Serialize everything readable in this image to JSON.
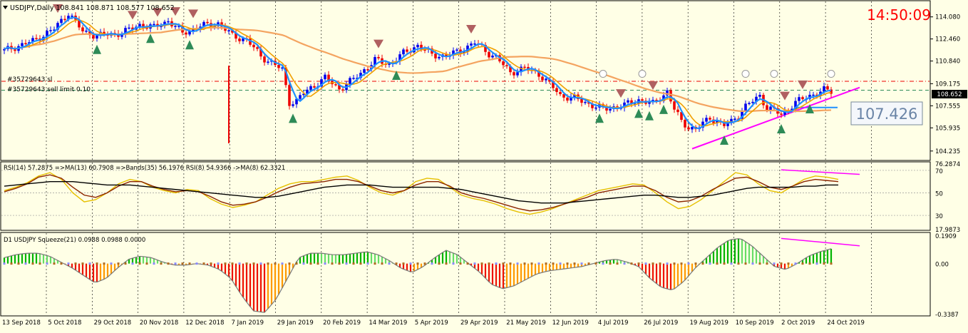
{
  "header": {
    "symbol_info": "USDJPY,Daily  108.841 108.871 108.577 108.652",
    "clock": "14:50:09",
    "clock_color": "#ff0000"
  },
  "price_panel": {
    "order_line_1": "#35729643 sl",
    "order_line_2": "#35729643 sell limit 0.10",
    "current_price_tag": "108.652",
    "level_label": "107.426"
  },
  "rsi_panel": {
    "legend": "RSI(14) 57.2875  =>MA(13) 60.7908  =>Bands(35) 56.1976  RSI(8) 54.9366  ->MA(8) 62.3321"
  },
  "squeeze_panel": {
    "legend": "D1 USDJPY Squeeze(21) 0.0988 0.0988 0.0000"
  },
  "colors": {
    "bull": "#0000ee",
    "bear": "#ee0000",
    "ema_fast": "#1e90ff",
    "ema_mid": "#f0a000",
    "sma_slow": "#f4a460",
    "trendline": "#ff00ff",
    "mom_up": "#00c800",
    "mom_down": "#ff2000"
  },
  "chart_data": [
    {
      "type": "candlestick",
      "symbol": "USDJPY",
      "timeframe": "Daily",
      "ohlc_last": {
        "open": 108.841,
        "high": 108.871,
        "low": 108.577,
        "close": 108.652
      },
      "ylim": [
        103.7,
        114.9
      ],
      "y_ticks": [
        104.235,
        105.935,
        107.555,
        109.175,
        110.84,
        112.46,
        114.08
      ],
      "y_tick_labels": [
        "104.235",
        "105.935",
        "107.555",
        "109.175",
        "110.840",
        "112.460",
        "114.080"
      ],
      "x_ticks": [
        "13 Sep 2018",
        "5 Oct 2018",
        "29 Oct 2018",
        "20 Nov 2018",
        "12 Dec 2018",
        "7 Jan 2019",
        "29 Jan 2019",
        "20 Feb 2019",
        "14 Mar 2019",
        "5 Apr 2019",
        "29 Apr 2019",
        "21 May 2019",
        "12 Jun 2019",
        "4 Jul 2019",
        "26 Jul 2019",
        "19 Aug 2019",
        "10 Sep 2019",
        "2 Oct 2019",
        "24 Oct 2019"
      ],
      "close_path": [
        [
          0,
          111.6
        ],
        [
          8,
          112.3
        ],
        [
          14,
          113.2
        ],
        [
          18,
          114.4
        ],
        [
          22,
          113.0
        ],
        [
          26,
          112.7
        ],
        [
          33,
          112.9
        ],
        [
          38,
          113.5
        ],
        [
          42,
          113.3
        ],
        [
          46,
          113.8
        ],
        [
          50,
          112.9
        ],
        [
          55,
          113.4
        ],
        [
          60,
          113.6
        ],
        [
          64,
          112.7
        ],
        [
          68,
          112.4
        ],
        [
          72,
          111.2
        ],
        [
          78,
          110.2
        ],
        [
          80,
          107.8
        ],
        [
          82,
          107.9
        ],
        [
          84,
          108.5
        ],
        [
          90,
          109.6
        ],
        [
          94,
          108.8
        ],
        [
          98,
          109.5
        ],
        [
          104,
          110.9
        ],
        [
          108,
          110.6
        ],
        [
          112,
          111.4
        ],
        [
          116,
          112.0
        ],
        [
          120,
          111.3
        ],
        [
          124,
          111.2
        ],
        [
          128,
          111.6
        ],
        [
          132,
          112.2
        ],
        [
          136,
          111.4
        ],
        [
          138,
          111.1
        ],
        [
          142,
          110.0
        ],
        [
          146,
          110.3
        ],
        [
          150,
          109.9
        ],
        [
          154,
          108.9
        ],
        [
          156,
          108.3
        ],
        [
          160,
          108.1
        ],
        [
          164,
          107.7
        ],
        [
          168,
          107.3
        ],
        [
          174,
          107.6
        ],
        [
          178,
          108.0
        ],
        [
          182,
          107.7
        ],
        [
          186,
          108.6
        ],
        [
          188,
          107.3
        ],
        [
          190,
          106.4
        ],
        [
          192,
          106.0
        ],
        [
          194,
          105.8
        ],
        [
          198,
          106.7
        ],
        [
          202,
          106.1
        ],
        [
          204,
          106.4
        ],
        [
          206,
          106.9
        ],
        [
          208,
          107.5
        ],
        [
          212,
          108.3
        ],
        [
          214,
          107.4
        ],
        [
          216,
          107.2
        ],
        [
          218,
          106.9
        ],
        [
          222,
          107.8
        ],
        [
          226,
          108.3
        ],
        [
          230,
          108.7
        ],
        [
          232,
          108.6
        ]
      ],
      "markers": {
        "sell_arrows": 11,
        "buy_arrows": 12,
        "thumbs_down": 5
      },
      "horizontal_lines": [
        109.35,
        108.7
      ],
      "level_segment": 107.426,
      "trendline": {
        "from": [
          193,
          104.4
        ],
        "to": [
          240,
          108.9
        ]
      }
    },
    {
      "type": "line",
      "title": "RSI(14) 57.2875 =>MA(13) 60.7908 =>Bands(35) 56.1976 RSI(8) 54.9366 ->MA(8) 62.3321",
      "ylim": [
        17.9873,
        76.2874
      ],
      "y_tick_labels": [
        "76.2874",
        "70",
        "50",
        "30",
        "17.9873"
      ],
      "series": [
        {
          "name": "RSI(8)",
          "values": [
            52,
            55,
            59,
            65,
            68,
            62,
            50,
            42,
            44,
            50,
            58,
            62,
            60,
            55,
            52,
            50,
            53,
            52,
            45,
            40,
            37,
            39,
            42,
            48,
            54,
            58,
            60,
            60,
            62,
            64,
            65,
            61,
            55,
            50,
            48,
            52,
            60,
            63,
            62,
            55,
            48,
            45,
            43,
            40,
            36,
            33,
            31,
            33,
            36,
            40,
            44,
            48,
            52,
            54,
            56,
            58,
            57,
            50,
            42,
            36,
            38,
            44,
            52,
            60,
            68,
            66,
            58,
            52,
            50,
            56,
            62,
            65,
            64,
            62
          ]
        },
        {
          "name": "RSI(14)",
          "values": [
            51,
            54,
            58,
            64,
            66,
            63,
            55,
            48,
            46,
            50,
            56,
            60,
            60,
            56,
            53,
            51,
            52,
            51,
            47,
            42,
            39,
            40,
            42,
            46,
            51,
            55,
            58,
            59,
            60,
            62,
            62,
            60,
            56,
            52,
            50,
            52,
            57,
            60,
            60,
            56,
            50,
            47,
            45,
            42,
            39,
            36,
            34,
            35,
            37,
            40,
            43,
            46,
            50,
            52,
            54,
            56,
            56,
            52,
            46,
            42,
            43,
            47,
            53,
            58,
            63,
            64,
            60,
            55,
            53,
            56,
            60,
            62,
            61,
            60
          ]
        },
        {
          "name": "Bands(35)",
          "values": [
            56,
            57,
            58,
            59,
            60,
            60,
            60,
            59,
            58,
            57,
            57,
            57,
            56,
            55,
            54,
            53,
            52,
            51,
            50,
            49,
            48,
            47,
            46,
            46,
            47,
            49,
            51,
            53,
            55,
            56,
            57,
            57,
            57,
            56,
            55,
            55,
            55,
            55,
            55,
            54,
            53,
            51,
            49,
            47,
            45,
            43,
            42,
            41,
            41,
            41,
            42,
            43,
            44,
            45,
            46,
            47,
            48,
            48,
            47,
            46,
            46,
            47,
            48,
            50,
            52,
            54,
            55,
            55,
            55,
            55,
            56,
            56,
            57,
            57
          ]
        }
      ],
      "levels": [
        70,
        50,
        30
      ],
      "trendline": {
        "from": [
          218,
          70.5
        ],
        "to": [
          240,
          66.5
        ]
      }
    },
    {
      "type": "bar",
      "title": "D1 USDJPY Squeeze(21) 0.0988 0.0988 0.0000",
      "ylim": [
        -0.3387,
        0.1909
      ],
      "y_tick_labels": [
        "0.1909",
        "0.00",
        "-0.3387"
      ],
      "values": [
        0.04,
        0.06,
        0.07,
        0.07,
        0.05,
        0.01,
        -0.03,
        -0.08,
        -0.13,
        -0.1,
        -0.03,
        0.03,
        0.05,
        0.04,
        0.01,
        -0.01,
        -0.01,
        0.0,
        -0.01,
        -0.04,
        -0.1,
        -0.22,
        -0.32,
        -0.33,
        -0.24,
        -0.1,
        0.04,
        0.07,
        0.07,
        0.06,
        0.06,
        0.07,
        0.08,
        0.06,
        0.02,
        -0.03,
        -0.06,
        -0.02,
        0.04,
        0.09,
        0.06,
        0.0,
        -0.06,
        -0.14,
        -0.17,
        -0.15,
        -0.11,
        -0.07,
        -0.05,
        -0.04,
        -0.03,
        -0.02,
        0.0,
        0.02,
        0.03,
        0.01,
        -0.02,
        -0.1,
        -0.16,
        -0.18,
        -0.12,
        -0.03,
        0.04,
        0.11,
        0.16,
        0.17,
        0.12,
        0.05,
        -0.02,
        -0.04,
        0.0,
        0.05,
        0.08,
        0.1
      ],
      "trendline": {
        "from": [
          218,
          0.17
        ],
        "to": [
          240,
          0.12
        ]
      }
    }
  ]
}
